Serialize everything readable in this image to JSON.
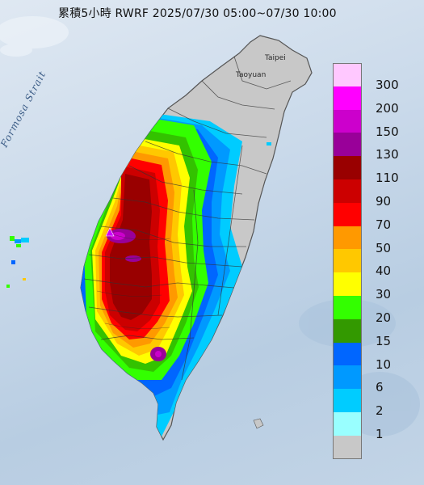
{
  "title": "累積5小時 RWRF 2025/07/30 05:00~07/30 10:00",
  "sea_labels": {
    "strait": "Formosa Strait"
  },
  "city_labels": {
    "taipei": "Taipei",
    "taoyuan": "Taoyuan"
  },
  "legend": {
    "unit": "",
    "items": [
      {
        "label": "300",
        "color": "#ffc8ff"
      },
      {
        "label": "200",
        "color": "#ff00ff"
      },
      {
        "label": "150",
        "color": "#cc00cc"
      },
      {
        "label": "130",
        "color": "#990099"
      },
      {
        "label": "110",
        "color": "#990000"
      },
      {
        "label": "90",
        "color": "#cc0000"
      },
      {
        "label": "70",
        "color": "#ff0000"
      },
      {
        "label": "50",
        "color": "#ff9900"
      },
      {
        "label": "40",
        "color": "#ffc800"
      },
      {
        "label": "30",
        "color": "#ffff00"
      },
      {
        "label": "20",
        "color": "#33ff00"
      },
      {
        "label": "15",
        "color": "#339900"
      },
      {
        "label": "10",
        "color": "#0066ff"
      },
      {
        "label": "6",
        "color": "#0099ff"
      },
      {
        "label": "2",
        "color": "#00ccff"
      },
      {
        "label": "1",
        "color": "#99ffff"
      },
      {
        "label": "",
        "color": "#c8c8c8"
      }
    ]
  }
}
